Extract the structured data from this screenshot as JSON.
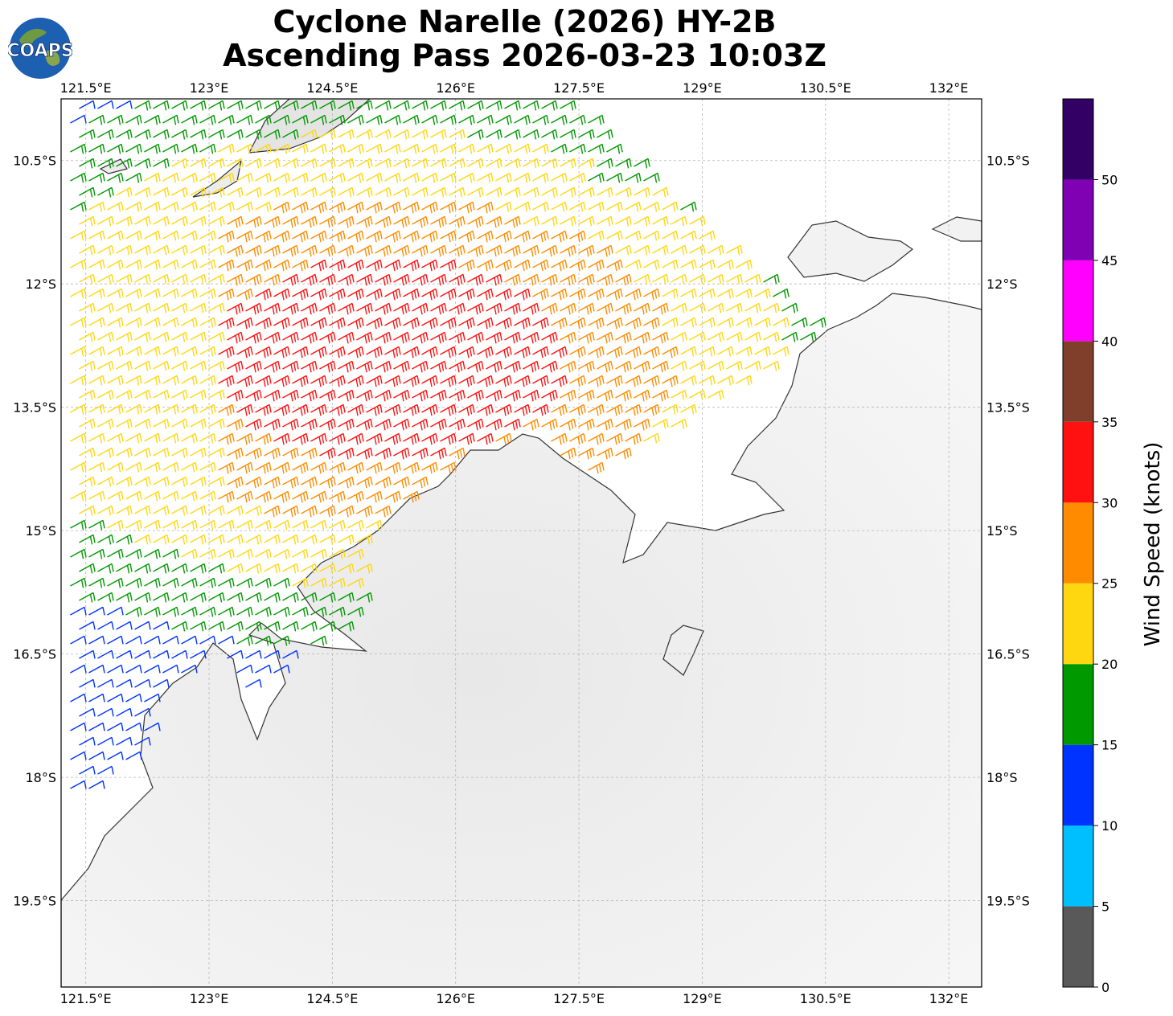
{
  "title": {
    "line1": "Cyclone Narelle (2026) HY-2B",
    "line2": "Ascending Pass 2026-03-23 10:03Z"
  },
  "logo": {
    "text": "COAPS",
    "icon": "globe-logo-icon"
  },
  "map": {
    "lon_labels": [
      "121.5°E",
      "123°E",
      "124.5°E",
      "126°E",
      "127.5°E",
      "129°E",
      "130.5°E",
      "132°E"
    ],
    "lon_values": [
      121.5,
      123,
      124.5,
      126,
      127.5,
      129,
      130.5,
      132
    ],
    "lat_labels": [
      "10.5°S",
      "12°S",
      "13.5°S",
      "15°S",
      "16.5°S",
      "18°S",
      "19.5°S"
    ],
    "lat_values": [
      -10.5,
      -12,
      -13.5,
      -15,
      -16.5,
      -18,
      -19.5
    ],
    "extent": {
      "lon_min": 121.2,
      "lon_max": 132.4,
      "lat_min": -20.55,
      "lat_max": -9.75
    },
    "grid": true,
    "background": "grayscale IR imagery over land"
  },
  "colorbar": {
    "label": "Wind Speed (knots)",
    "ticks": [
      "0",
      "5",
      "10",
      "15",
      "20",
      "25",
      "30",
      "35",
      "40",
      "45",
      "50"
    ],
    "bins": [
      {
        "range": [
          0,
          5
        ],
        "color": "#595959"
      },
      {
        "range": [
          5,
          10
        ],
        "color": "#00bfff"
      },
      {
        "range": [
          10,
          15
        ],
        "color": "#0033ff"
      },
      {
        "range": [
          15,
          20
        ],
        "color": "#009900"
      },
      {
        "range": [
          20,
          25
        ],
        "color": "#ffd711"
      },
      {
        "range": [
          25,
          30
        ],
        "color": "#ff8c00"
      },
      {
        "range": [
          30,
          35
        ],
        "color": "#ff1111"
      },
      {
        "range": [
          35,
          40
        ],
        "color": "#803f2a"
      },
      {
        "range": [
          40,
          45
        ],
        "color": "#ff00ff"
      },
      {
        "range": [
          45,
          50
        ],
        "color": "#8000b3"
      },
      {
        "range": [
          50,
          55
        ],
        "color": "#330066"
      }
    ]
  }
}
